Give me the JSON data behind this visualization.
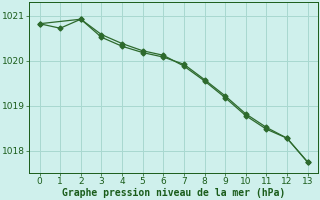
{
  "xlabel": "Graphe pression niveau de la mer (hPa)",
  "xlim": [
    -0.5,
    13.5
  ],
  "ylim": [
    1017.5,
    1021.3
  ],
  "yticks": [
    1018,
    1019,
    1020,
    1021
  ],
  "xticks": [
    0,
    1,
    2,
    3,
    4,
    5,
    6,
    7,
    8,
    9,
    10,
    11,
    12,
    13
  ],
  "line1_x": [
    0,
    1,
    2,
    3,
    4,
    5,
    6,
    7,
    8,
    9,
    10,
    11,
    12,
    13
  ],
  "line1_y": [
    1020.82,
    1020.72,
    1020.92,
    1020.58,
    1020.38,
    1020.22,
    1020.12,
    1019.88,
    1019.55,
    1019.18,
    1018.78,
    1018.48,
    1018.28,
    1017.75
  ],
  "line2_x": [
    0,
    2,
    3,
    4,
    5,
    6,
    7,
    8,
    9,
    10,
    11,
    12,
    13
  ],
  "line2_y": [
    1020.82,
    1020.92,
    1020.52,
    1020.32,
    1020.18,
    1020.08,
    1019.92,
    1019.58,
    1019.22,
    1018.82,
    1018.52,
    1018.28,
    1017.75
  ],
  "line_color": "#2d6a2d",
  "marker": "D",
  "marker_size": 2.5,
  "bg_color": "#cff0ec",
  "grid_color": "#a8d8d0",
  "xlabel_color": "#1a5c1a",
  "xlabel_fontsize": 7.0,
  "tick_fontsize": 6.5,
  "tick_color": "#1a5c1a",
  "spine_color": "#1a5c1a",
  "linewidth": 0.9
}
